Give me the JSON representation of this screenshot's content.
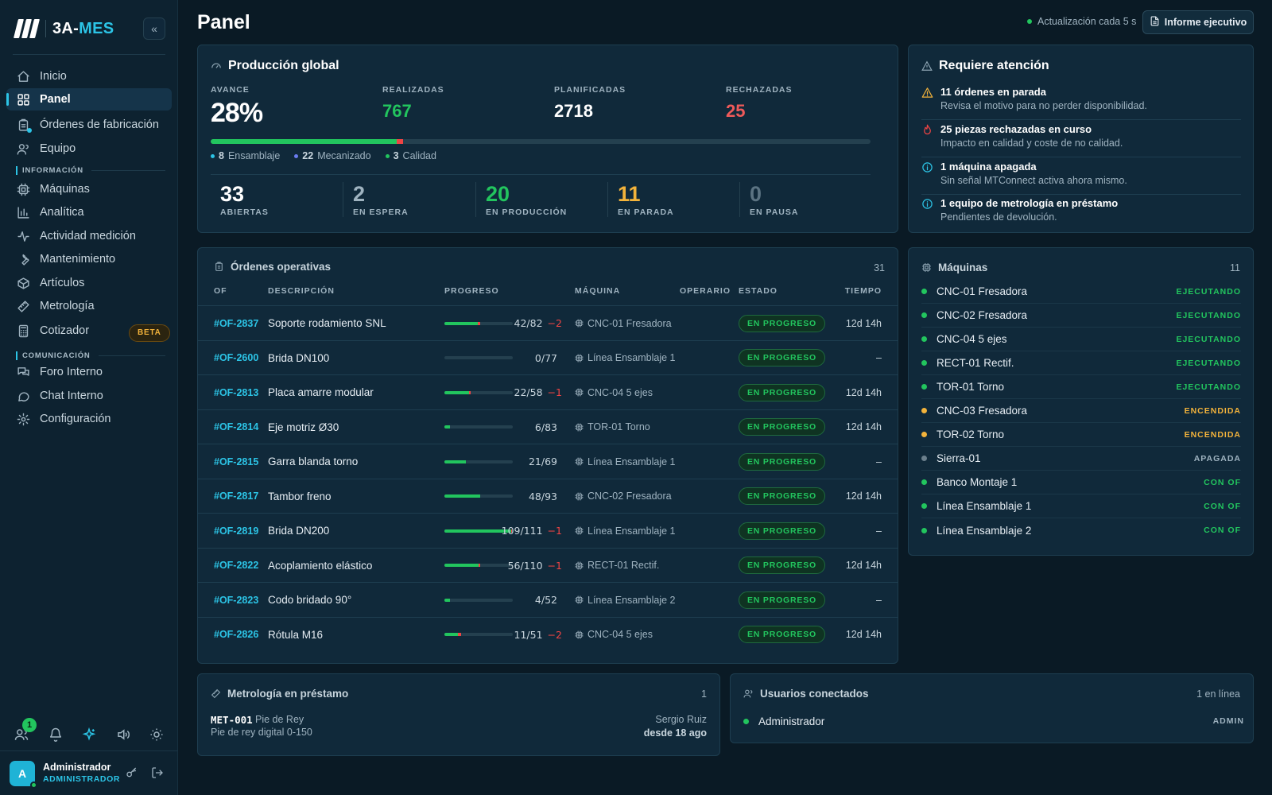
{
  "app": {
    "logo_prefix": "3A-",
    "logo_accent": "MES"
  },
  "sidebar": {
    "items": [
      {
        "label": "Inicio",
        "icon": "home-icon"
      },
      {
        "label": "Panel",
        "icon": "dashboard-icon",
        "active": true
      },
      {
        "label": "Órdenes de fabricación",
        "icon": "clipboard-icon"
      },
      {
        "label": "Equipo",
        "icon": "users-icon"
      },
      {
        "label": "Máquinas",
        "icon": "cpu-icon"
      },
      {
        "label": "Analítica",
        "icon": "bar-chart-icon"
      },
      {
        "label": "Actividad medición",
        "icon": "activity-icon"
      },
      {
        "label": "Mantenimiento",
        "icon": "wrench-icon"
      },
      {
        "label": "Artículos",
        "icon": "box-icon"
      },
      {
        "label": "Metrología",
        "icon": "ruler-icon"
      },
      {
        "label": "Cotizador",
        "icon": "calculator-icon",
        "badge": "BETA"
      },
      {
        "label": "Foro Interno",
        "icon": "forum-icon"
      },
      {
        "label": "Chat Interno",
        "icon": "chat-icon"
      },
      {
        "label": "Configuración",
        "icon": "gear-icon"
      }
    ],
    "section_info": "INFORMACIÓN",
    "section_com": "COMUNICACIÓN",
    "users_badge": "1",
    "user": {
      "initial": "A",
      "name": "Administrador",
      "role": "ADMINISTRADOR"
    }
  },
  "header": {
    "title": "Panel",
    "refresh": "Actualización cada 5 s",
    "exec_button": "Informe ejecutivo"
  },
  "production": {
    "title": "Producción global",
    "kpis": {
      "avance_label": "AVANCE",
      "avance": "28%",
      "realizadas_label": "REALIZADAS",
      "realizadas": "767",
      "planificadas_label": "PLANIFICADAS",
      "planificadas": "2718",
      "rechazadas_label": "RECHAZADAS",
      "rechazadas": "25"
    },
    "progress": {
      "done_fraction": 0.282,
      "rejected_fraction": 0.009
    },
    "legend": [
      {
        "count": "8",
        "label": "Ensamblaje",
        "color": "#2cc4e6"
      },
      {
        "count": "22",
        "label": "Mecanizado",
        "color": "#6b7cf0"
      },
      {
        "count": "3",
        "label": "Calidad",
        "color": "#22c55e"
      }
    ],
    "stats": [
      {
        "value": "33",
        "label": "ABIERTAS",
        "color": "#ffffff"
      },
      {
        "value": "2",
        "label": "EN ESPERA",
        "color": "#9fb3c0"
      },
      {
        "value": "20",
        "label": "EN PRODUCCIÓN",
        "color": "#22c55e"
      },
      {
        "value": "11",
        "label": "EN PARADA",
        "color": "#f3b33b"
      },
      {
        "value": "0",
        "label": "EN PAUSA",
        "color": "#5b7382"
      }
    ]
  },
  "attention": {
    "title": "Requiere atención",
    "items": [
      {
        "title": "11 órdenes en parada",
        "sub": "Revisa el motivo para no perder disponibilidad.",
        "icon": "warning-icon",
        "color": "#f3b33b"
      },
      {
        "title": "25 piezas rechazadas en curso",
        "sub": "Impacto en calidad y coste de no calidad.",
        "icon": "flame-icon",
        "color": "#ef4444"
      },
      {
        "title": "1 máquina apagada",
        "sub": "Sin señal MTConnect activa ahora mismo.",
        "icon": "info-icon",
        "color": "#2cc4e6"
      },
      {
        "title": "1 equipo de metrología en préstamo",
        "sub": "Pendientes de devolución.",
        "icon": "info-icon",
        "color": "#2cc4e6"
      }
    ]
  },
  "orders": {
    "title": "Órdenes operativas",
    "count": "31",
    "columns": {
      "of": "OF",
      "desc": "DESCRIPCIÓN",
      "progress": "PROGRESO",
      "machine": "MÁQUINA",
      "operator": "OPERARIO",
      "state": "ESTADO",
      "time": "TIEMPO"
    },
    "rows": [
      {
        "id": "#OF-2837",
        "desc": "Soporte rodamiento SNL",
        "qty": "42/82",
        "rej": "−2",
        "done": 0.49,
        "rejf": 0.03,
        "machine": "CNC-01 Fresadora",
        "state": "EN PROGRESO",
        "time": "12d 14h"
      },
      {
        "id": "#OF-2600",
        "desc": "Brida DN100",
        "qty": "0/77",
        "rej": "",
        "done": 0.0,
        "rejf": 0.0,
        "machine": "Línea Ensamblaje 1",
        "state": "EN PROGRESO",
        "time": "–"
      },
      {
        "id": "#OF-2813",
        "desc": "Placa amarre modular",
        "qty": "22/58",
        "rej": "−1",
        "done": 0.36,
        "rejf": 0.02,
        "machine": "CNC-04 5 ejes",
        "state": "EN PROGRESO",
        "time": "12d 14h"
      },
      {
        "id": "#OF-2814",
        "desc": "Eje motriz Ø30",
        "qty": "6/83",
        "rej": "",
        "done": 0.08,
        "rejf": 0.0,
        "machine": "TOR-01 Torno",
        "state": "EN PROGRESO",
        "time": "12d 14h"
      },
      {
        "id": "#OF-2815",
        "desc": "Garra blanda torno",
        "qty": "21/69",
        "rej": "",
        "done": 0.31,
        "rejf": 0.0,
        "machine": "Línea Ensamblaje 1",
        "state": "EN PROGRESO",
        "time": "–"
      },
      {
        "id": "#OF-2817",
        "desc": "Tambor freno",
        "qty": "48/93",
        "rej": "",
        "done": 0.52,
        "rejf": 0.0,
        "machine": "CNC-02 Fresadora",
        "state": "EN PROGRESO",
        "time": "12d 14h"
      },
      {
        "id": "#OF-2819",
        "desc": "Brida DN200",
        "qty": "109/111",
        "rej": "−1",
        "done": 0.98,
        "rejf": 0.01,
        "machine": "Línea Ensamblaje 1",
        "state": "EN PROGRESO",
        "time": "–"
      },
      {
        "id": "#OF-2822",
        "desc": "Acoplamiento elástico",
        "qty": "56/110",
        "rej": "−1",
        "done": 0.5,
        "rejf": 0.02,
        "machine": "RECT-01 Rectif.",
        "state": "EN PROGRESO",
        "time": "12d 14h"
      },
      {
        "id": "#OF-2823",
        "desc": "Codo bridado 90°",
        "qty": "4/52",
        "rej": "",
        "done": 0.08,
        "rejf": 0.0,
        "machine": "Línea Ensamblaje 2",
        "state": "EN PROGRESO",
        "time": "–"
      },
      {
        "id": "#OF-2826",
        "desc": "Rótula M16",
        "qty": "11/51",
        "rej": "−2",
        "done": 0.2,
        "rejf": 0.04,
        "machine": "CNC-04 5 ejes",
        "state": "EN PROGRESO",
        "time": "12d 14h"
      }
    ]
  },
  "machines": {
    "title": "Máquinas",
    "count": "11",
    "rows": [
      {
        "name": "CNC-01 Fresadora",
        "state": "EJECUTANDO",
        "color": "#22c55e"
      },
      {
        "name": "CNC-02 Fresadora",
        "state": "EJECUTANDO",
        "color": "#22c55e"
      },
      {
        "name": "CNC-04 5 ejes",
        "state": "EJECUTANDO",
        "color": "#22c55e"
      },
      {
        "name": "RECT-01 Rectif.",
        "state": "EJECUTANDO",
        "color": "#22c55e"
      },
      {
        "name": "TOR-01 Torno",
        "state": "EJECUTANDO",
        "color": "#22c55e"
      },
      {
        "name": "CNC-03 Fresadora",
        "state": "ENCENDIDA",
        "color": "#f3b33b"
      },
      {
        "name": "TOR-02 Torno",
        "state": "ENCENDIDA",
        "color": "#f3b33b"
      },
      {
        "name": "Sierra-01",
        "state": "APAGADA",
        "color": "#6b7f8c"
      },
      {
        "name": "Banco Montaje 1",
        "state": "CON OF",
        "color": "#22c55e"
      },
      {
        "name": "Línea Ensamblaje 1",
        "state": "CON OF",
        "color": "#22c55e"
      },
      {
        "name": "Línea Ensamblaje 2",
        "state": "CON OF",
        "color": "#22c55e"
      }
    ]
  },
  "metrology": {
    "title": "Metrología en préstamo",
    "count": "1",
    "item": {
      "code": "MET-001",
      "name": "Pie de Rey",
      "desc": "Pie de rey digital 0-150",
      "who": "Sergio Ruiz",
      "since": "desde 18 ago"
    }
  },
  "users": {
    "title": "Usuarios conectados",
    "count": "1 en línea",
    "rows": [
      {
        "name": "Administrador",
        "role": "ADMIN"
      }
    ]
  }
}
